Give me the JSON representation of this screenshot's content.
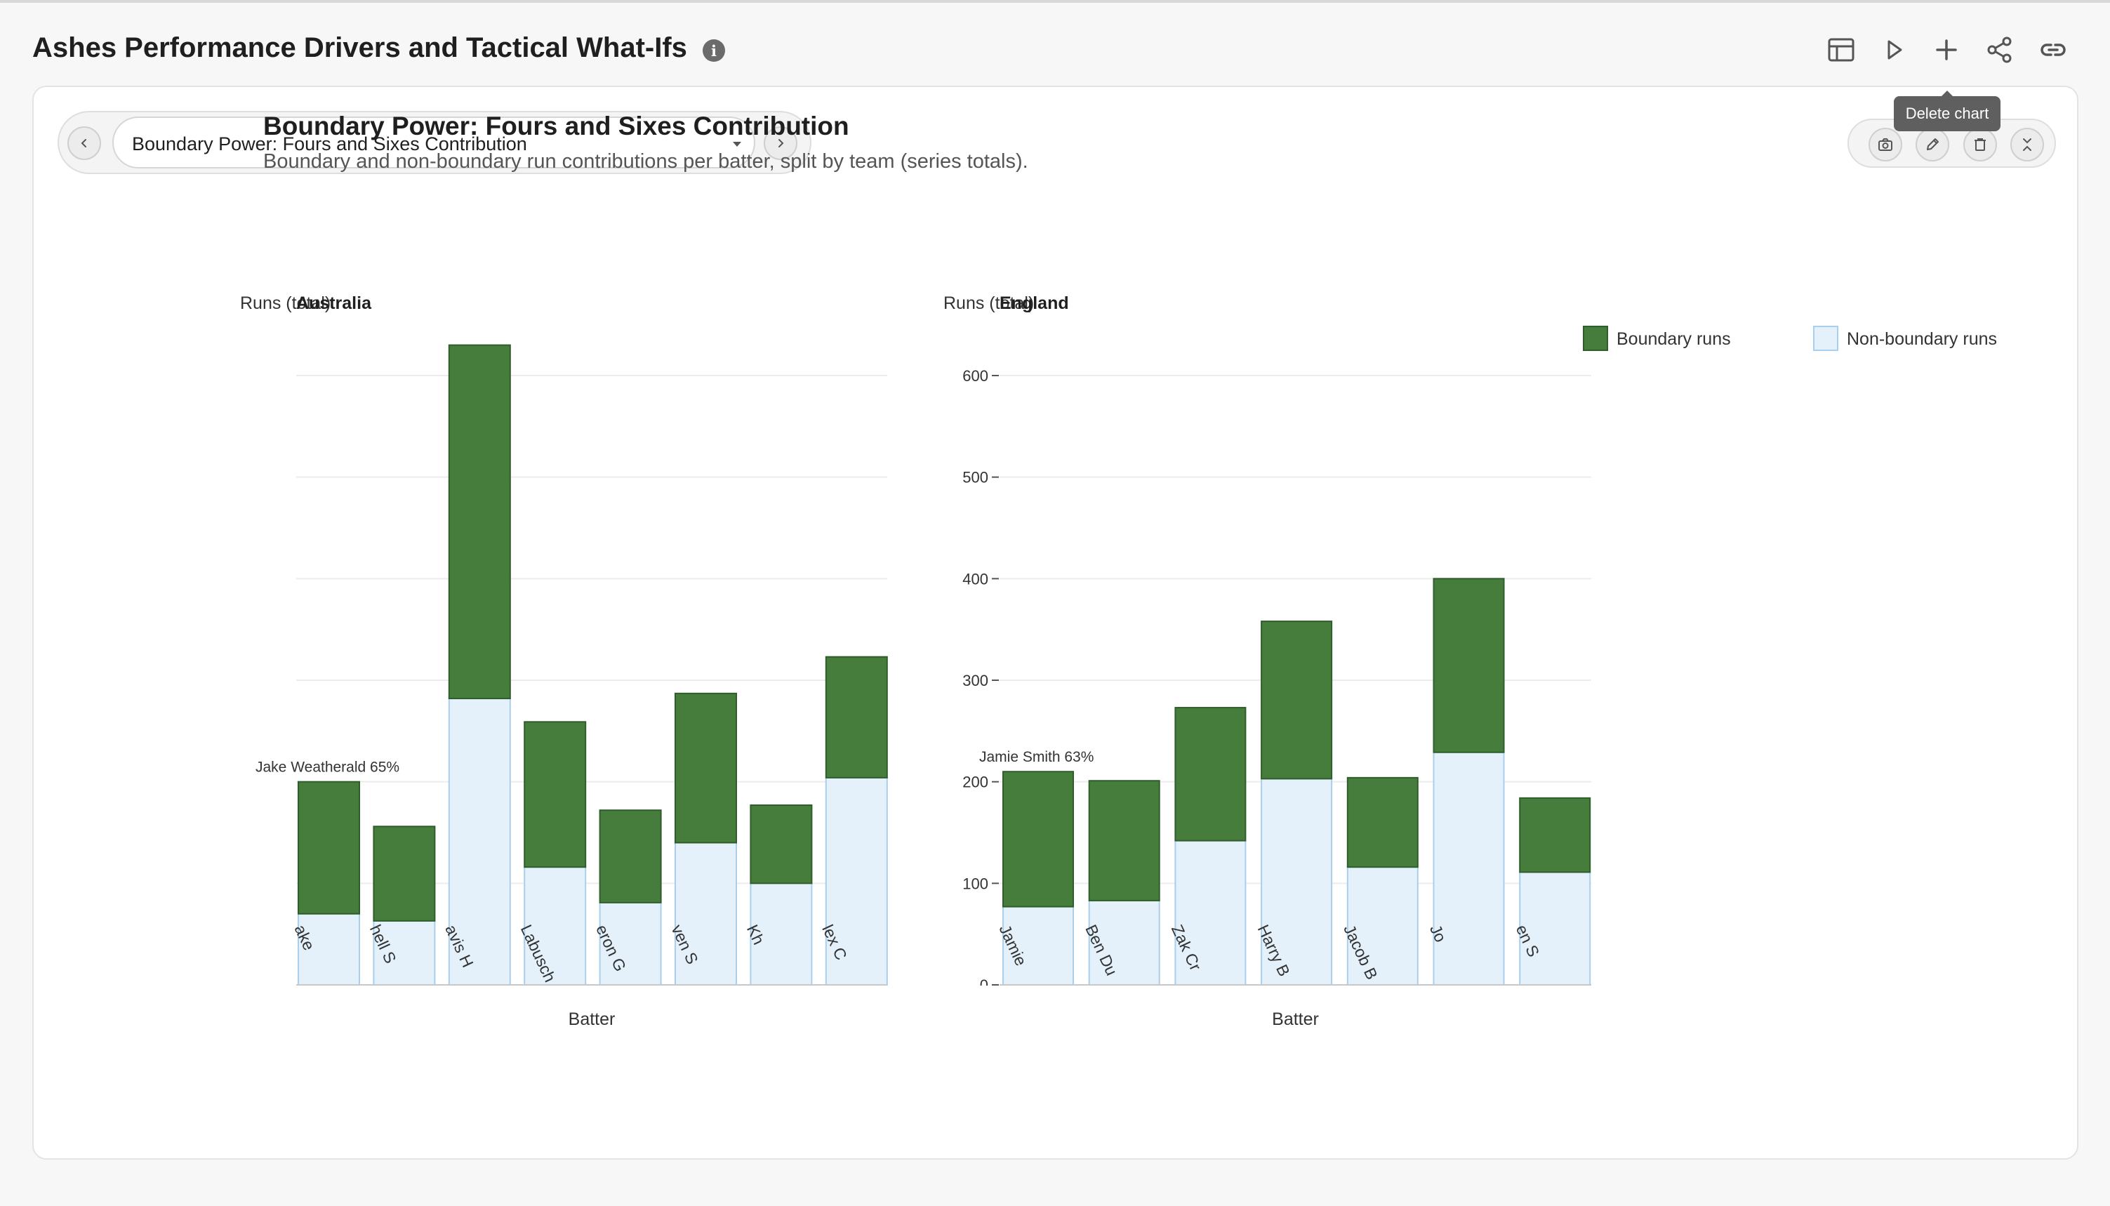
{
  "header": {
    "title": "Ashes Performance Drivers and Tactical What-Ifs",
    "info_icon": "info-icon",
    "actions": [
      {
        "name": "table-view-button",
        "icon": "table-icon"
      },
      {
        "name": "play-button",
        "icon": "play-icon"
      },
      {
        "name": "add-button",
        "icon": "plus-icon"
      },
      {
        "name": "share-button",
        "icon": "share-icon"
      },
      {
        "name": "copy-link-button",
        "icon": "link-icon"
      }
    ]
  },
  "selector": {
    "value": "Boundary Power: Fours and Sixes Contribution",
    "prev_icon": "chevron-left-icon",
    "next_icon": "chevron-right-icon"
  },
  "chart_tools": {
    "buttons": [
      {
        "name": "snapshot-button",
        "icon": "camera-icon"
      },
      {
        "name": "edit-chart-button",
        "icon": "pencil-icon"
      },
      {
        "name": "delete-chart-button",
        "icon": "trash-icon"
      },
      {
        "name": "collapse-button",
        "icon": "collapse-icon"
      }
    ],
    "tooltip": "Delete chart"
  },
  "colors": {
    "boundary": "#467d3c",
    "boundary_stroke": "#2f5e2a",
    "non_boundary": "#e4f1fb",
    "non_boundary_stroke": "#a9cfee",
    "grid": "#ececec"
  },
  "chart_data": {
    "type": "bar",
    "stacked": true,
    "title": "Boundary Power: Fours and Sixes Contribution",
    "subtitle": "Boundary and non-boundary run contributions per batter, split by team (series totals).",
    "ylabel": "Runs (total)",
    "xlabel": "Batter",
    "ylim": [
      0,
      600
    ],
    "yticks": [
      0,
      100,
      200,
      300,
      400,
      500,
      600
    ],
    "grid": true,
    "legend": {
      "position": "top-right",
      "entries": [
        "Boundary runs",
        "Non-boundary runs"
      ]
    },
    "series_names": [
      "Boundary runs",
      "Non-boundary runs"
    ],
    "panels": [
      {
        "team": "Australia",
        "annotation": "Jake Weatherald 65%",
        "annotation_index": 0,
        "categories": [
          "ake",
          "hell S",
          "avis H",
          "Labusch",
          "eron G",
          "ven S",
          "Kh",
          "lex C"
        ],
        "boundary": [
          130,
          93,
          348,
          143,
          91,
          147,
          77,
          119
        ],
        "non_boundary": [
          70,
          63,
          282,
          116,
          81,
          140,
          100,
          204
        ]
      },
      {
        "team": "England",
        "annotation": "Jamie Smith 63%",
        "annotation_index": 0,
        "categories": [
          "Jamie",
          "Ben Du",
          "Zak Cr",
          "Harry B",
          "Jacob B",
          "Jo",
          "en S"
        ],
        "boundary": [
          133,
          118,
          131,
          155,
          88,
          171,
          73
        ],
        "non_boundary": [
          77,
          83,
          142,
          203,
          116,
          229,
          111
        ]
      }
    ]
  }
}
